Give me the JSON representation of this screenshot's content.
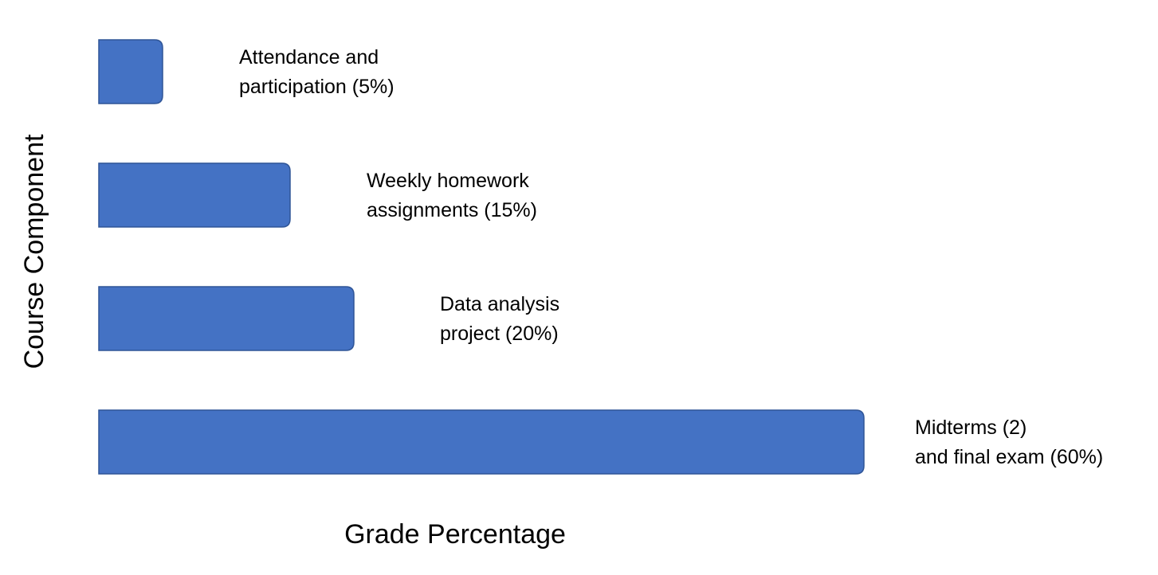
{
  "chart_data": {
    "type": "bar",
    "orientation": "horizontal",
    "xlabel": "Grade Percentage",
    "ylabel": "Course Component",
    "xlim": [
      0,
      60
    ],
    "grid": false,
    "legend": "none",
    "colors": {
      "bar": "#4472C4",
      "bar_edge": "#2F5597",
      "text": "#000000",
      "background": "#FFFFFF"
    },
    "categories": [
      "Attendance and participation",
      "Weekly homework assignments",
      "Data analysis project",
      "Midterms (2) and final exam"
    ],
    "values": [
      5,
      15,
      20,
      60
    ],
    "labels": [
      [
        "Attendance and",
        "participation (5%)"
      ],
      [
        "Weekly homework",
        "assignments (15%)"
      ],
      [
        "Data analysis",
        "project (20%)"
      ],
      [
        "Midterms (2)",
        "and final exam (60%)"
      ]
    ]
  }
}
